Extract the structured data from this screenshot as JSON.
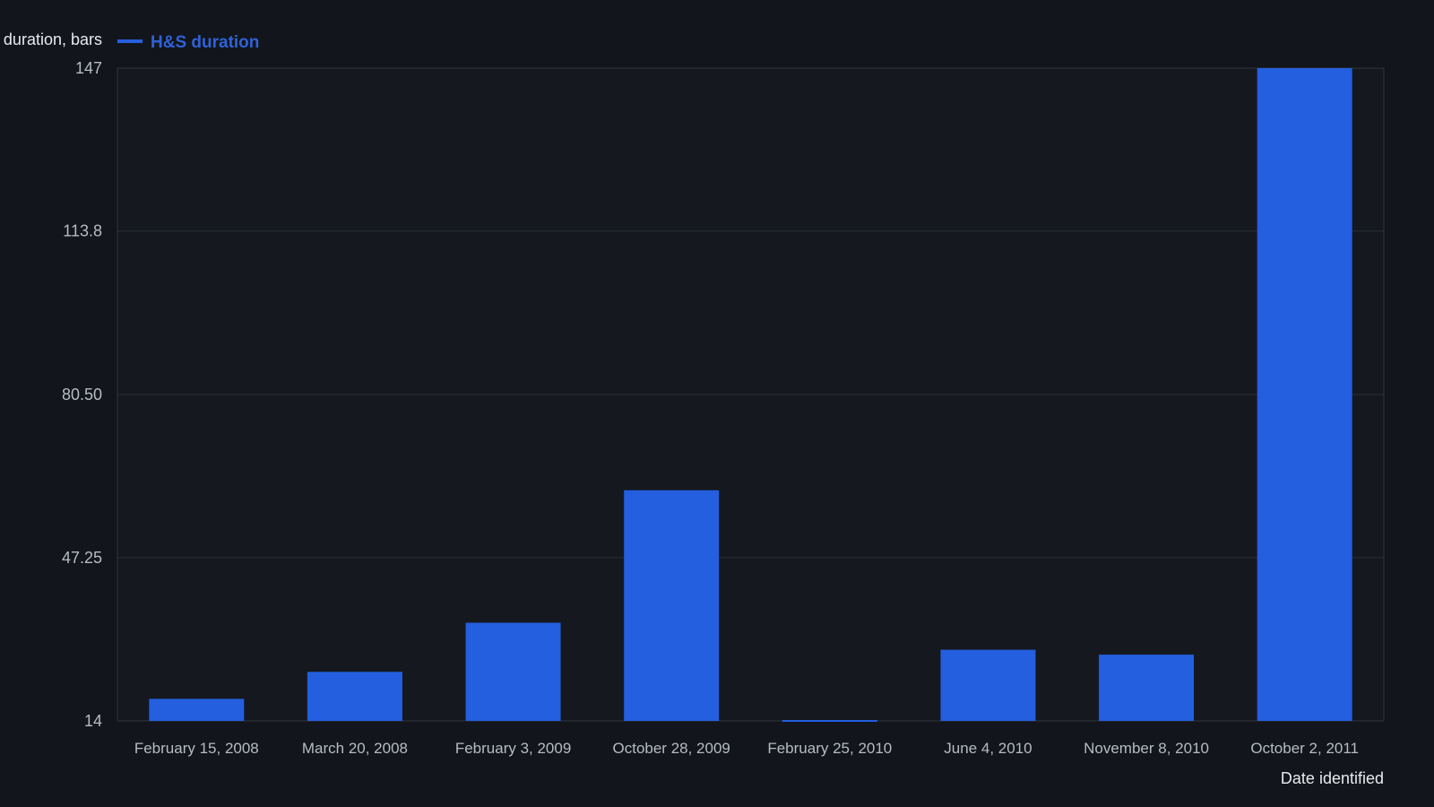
{
  "chart_data": {
    "type": "bar",
    "ylabel": "duration, bars",
    "xlabel": "Date identified",
    "legend": {
      "position": "top-left"
    },
    "categories": [
      "February 15, 2008",
      "March 20, 2008",
      "February 3, 2009",
      "October 28, 2009",
      "February 25, 2010",
      "June 4, 2010",
      "November 8, 2010",
      "October 2, 2011"
    ],
    "series": [
      {
        "name": "H&S duration",
        "values": [
          18.5,
          24,
          34,
          61,
          13.8,
          28.5,
          27.5,
          147
        ]
      }
    ],
    "ylim": [
      14,
      147
    ],
    "yticks": [
      "14",
      "47.25",
      "80.50",
      "113.8",
      "147"
    ],
    "ytick_values": [
      14,
      47.25,
      80.5,
      113.8,
      147
    ],
    "grid": true,
    "colors": {
      "background": "#12151b",
      "bar": "#245fe0",
      "legend_text": "#2f62d8"
    }
  }
}
